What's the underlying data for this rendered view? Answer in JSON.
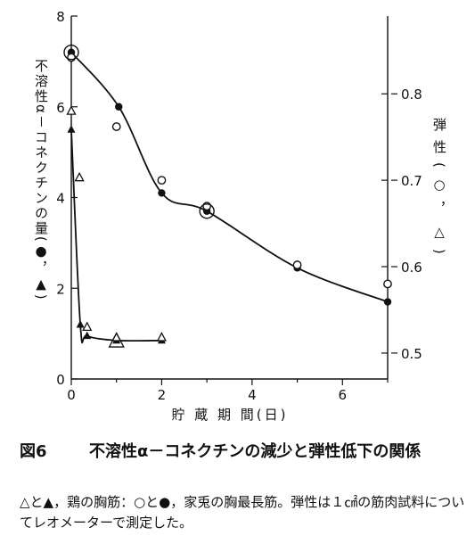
{
  "figure": {
    "number": "図6",
    "title": "不溶性α－コネクチンの減少と弾性低下の関係",
    "note": "△と▲，鶏の胸筋：○と●，家兎の胸最長筋。弾性は１㎠の筋肉試料についてレオメーターで測定した。"
  },
  "chart_data": {
    "type": "scatter",
    "xlabel": "貯 蔵 期 間(日)",
    "ylabel_left": "不溶性α－コネクチンの量(●，▲)",
    "ylabel_right": "弾性(○，△)",
    "xlim": [
      0,
      7
    ],
    "ylim_left": [
      0,
      8
    ],
    "ylim_right": [
      0.47,
      0.89
    ],
    "x_ticks": [
      "0",
      "2",
      "4",
      "6"
    ],
    "y_left_ticks": [
      "0",
      "2",
      "4",
      "6",
      "8"
    ],
    "y_right_ticks": [
      "0.5",
      "0.6",
      "0.7",
      "0.8"
    ],
    "series": [
      {
        "name": "●",
        "axis": "left",
        "marker": "filled-circle",
        "curve": true,
        "x": [
          0,
          1.05,
          2,
          3,
          5,
          7
        ],
        "y": [
          7.2,
          6.0,
          4.1,
          3.7,
          2.45,
          1.7
        ]
      },
      {
        "name": "○",
        "axis": "right",
        "marker": "open-circle",
        "x": [
          0,
          1,
          2,
          3,
          5,
          7
        ],
        "y": [
          0.842,
          0.762,
          0.7,
          0.67,
          0.602,
          0.58
        ]
      },
      {
        "name": "▲",
        "axis": "left",
        "marker": "filled-triangle",
        "curve": true,
        "x": [
          0,
          0.2,
          0.35,
          1,
          2
        ],
        "y": [
          5.5,
          1.2,
          0.95,
          0.85,
          0.85
        ]
      },
      {
        "name": "△",
        "axis": "right",
        "marker": "open-triangle",
        "x": [
          0,
          0.18,
          0.35,
          1,
          2
        ],
        "y": [
          0.78,
          0.703,
          0.53,
          0.518,
          0.518
        ]
      }
    ]
  }
}
